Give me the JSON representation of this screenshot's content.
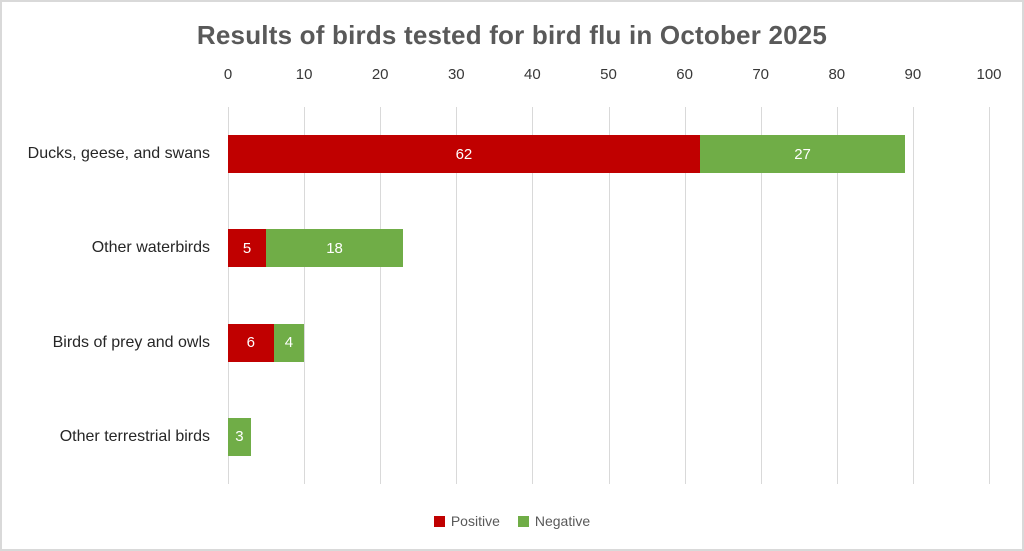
{
  "title": "Results of birds tested for bird flu in October 2025",
  "colors": {
    "positive": "#C00000",
    "negative": "#70AD47",
    "gridline": "#D9D9D9",
    "title_text": "#595959",
    "axis_text": "#383838",
    "category_text": "#262626",
    "legend_text": "#595959",
    "value_text": "#FFFFFF",
    "frame_border": "#D9D9D9"
  },
  "chart_data": {
    "type": "bar",
    "orientation": "horizontal",
    "stacked": true,
    "title": "Results of birds tested for bird flu in October 2025",
    "categories": [
      "Ducks, geese, and swans",
      "Other waterbirds",
      "Birds of prey and owls",
      "Other terrestrial birds"
    ],
    "series": [
      {
        "name": "Positive",
        "color": "#C00000",
        "values": [
          62,
          5,
          6,
          0
        ]
      },
      {
        "name": "Negative",
        "color": "#70AD47",
        "values": [
          27,
          18,
          4,
          3
        ]
      }
    ],
    "xlabel": "",
    "ylabel": "",
    "xlim": [
      0,
      100
    ],
    "x_ticks": [
      0,
      10,
      20,
      30,
      40,
      50,
      60,
      70,
      80,
      90,
      100
    ],
    "x_axis_position": "top",
    "grid": true,
    "value_labels": "inside-center",
    "legend_position": "bottom",
    "legend_entries": [
      "Positive",
      "Negative"
    ]
  }
}
